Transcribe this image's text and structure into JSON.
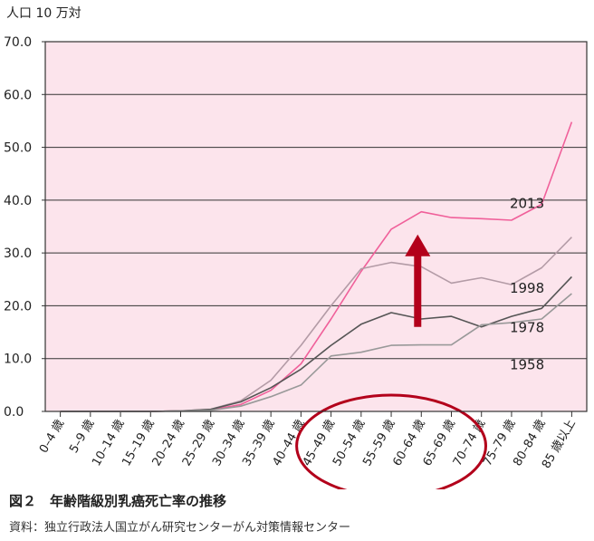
{
  "caption": {
    "title": "図２　年齢階級別乳癌死亡率の推移",
    "source": "資料：独立行政法人国立がん研究センターがん対策情報センター"
  },
  "chart_data": {
    "type": "line",
    "ylabel": "人口 10 万対",
    "xlabel": "",
    "ylim": [
      0,
      70
    ],
    "yticks": [
      "0.0",
      "10.0",
      "20.0",
      "30.0",
      "40.0",
      "50.0",
      "60.0",
      "70.0"
    ],
    "categories": [
      "0–4 歳",
      "5–9 歳",
      "10–14 歳",
      "15–19 歳",
      "20–24 歳",
      "25–29 歳",
      "30–34 歳",
      "35–39 歳",
      "40–44 歳",
      "45–49 歳",
      "50–54 歳",
      "55–59 歳",
      "60–64 歳",
      "65–69 歳",
      "70–74 歳",
      "75–79 歳",
      "80–84 歳",
      "85 歳以上"
    ],
    "grid": "horizontal",
    "background": "#fce4ec",
    "series": [
      {
        "name": "2013",
        "color": "#f0609a",
        "values": [
          0.0,
          0.0,
          0.0,
          0.0,
          0.1,
          0.3,
          1.3,
          4.0,
          9.0,
          17.5,
          26.5,
          34.5,
          37.8,
          36.7,
          36.5,
          36.2,
          39.2,
          54.8
        ]
      },
      {
        "name": "1998",
        "color": "#b39ba6",
        "values": [
          0.0,
          0.0,
          0.0,
          0.0,
          0.1,
          0.4,
          2.0,
          5.9,
          12.5,
          20.0,
          27.0,
          28.2,
          27.4,
          24.3,
          25.3,
          24.0,
          27.2,
          33.0
        ]
      },
      {
        "name": "1978",
        "color": "#555555",
        "values": [
          0.0,
          0.0,
          0.0,
          0.0,
          0.1,
          0.4,
          1.8,
          4.5,
          8.0,
          12.5,
          16.5,
          18.7,
          17.5,
          18.0,
          16.0,
          18.0,
          19.5,
          25.5
        ]
      },
      {
        "name": "1958",
        "color": "#999999",
        "values": [
          0.0,
          0.0,
          0.0,
          0.0,
          0.1,
          0.2,
          1.0,
          2.8,
          5.0,
          10.5,
          11.2,
          12.5,
          12.6,
          12.6,
          16.4,
          16.8,
          17.5,
          22.3
        ]
      }
    ],
    "annotations": [
      {
        "type": "arrow",
        "color": "#b3001b",
        "direction": "up",
        "category": "60–64 歳",
        "from": 16,
        "to": 33.5
      },
      {
        "type": "ellipse",
        "color": "#b3001b",
        "range": [
          "45–49 歳",
          "65–69 歳"
        ]
      }
    ]
  }
}
